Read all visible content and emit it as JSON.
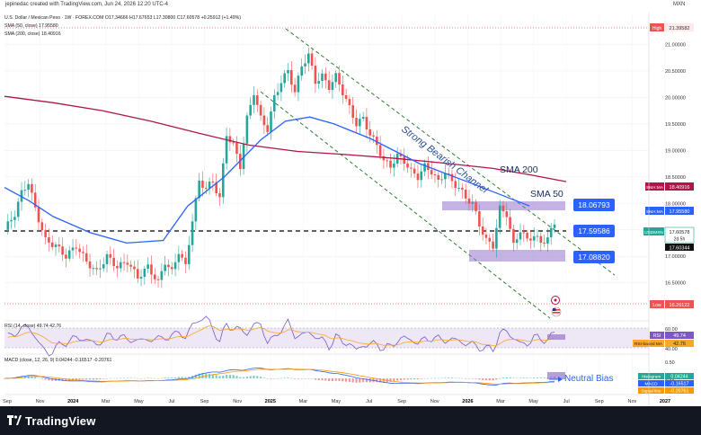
{
  "header": {
    "credit": "jepinedac created with TradingView.com, Jun 24, 2026 12:20 UTC-4",
    "currency": "MXN"
  },
  "legend": {
    "main": "U.S. Dollar / Mexican Peso · 1W · FOREX.COM O17.34666 H17.67653 L17.30800 C17.60578 +0.25912 (+1.49%)",
    "sma50": "SMA (50, close) 17.95580",
    "sma200": "SMA (200, close) 18.40916",
    "rsi": "RSI (14, close) 49.74 42.76",
    "macd": "MACD (close, 12, 26, 9) 0.04244 -0.16517 -0.20761"
  },
  "colors": {
    "bull": "#26a69a",
    "bear": "#ef5350",
    "sma50": "#2962ff",
    "sma200": "#b2134a",
    "box": "#9575cd",
    "label": "#2962ff",
    "rsi": "#7e57c2",
    "macd": "#2962ff",
    "signal": "#ff9800"
  },
  "annotations": {
    "channel": "Strong Bearish Channel",
    "sma200_label": "SMA 200",
    "sma50_label": "SMA 50",
    "neutral": "Neutral Bias",
    "level_top": "18.06793",
    "level_mid": "17.59586",
    "level_bot": "17.08820"
  },
  "price_tags": {
    "high_label": "High",
    "high": "21.39582",
    "sma200_tag": "SMA:MA",
    "sma200": "18.40916",
    "sma50_tag": "SMA:MA",
    "sma50": "17.95580",
    "cur_tag": "USDMXN",
    "cur": "17.60578",
    "countdown": "2d 5h",
    "prev": "17.60344",
    "low_label": "Low",
    "low": "16.26122"
  },
  "rsi_tags": {
    "rsi_label": "RSI",
    "rsi": "49.74",
    "ma_label": "RSI-based MA",
    "ma": "42.76"
  },
  "macd_tags": {
    "hist_label": "Histogram",
    "hist": "0.04244",
    "macd_label": "MACD",
    "macd": "-0.16517",
    "sig_label": "Signal line",
    "sig": "-0.20761"
  },
  "footer": {
    "brand": "TradingView"
  },
  "chart_data": {
    "type": "candlestick",
    "symbol": "USDMXN",
    "timeframe": "1W",
    "ylim": [
      15.9,
      21.5
    ],
    "y_ticks": [
      21.0,
      20.5,
      20.0,
      19.5,
      19.0,
      18.5,
      18.0,
      17.5,
      17.0,
      16.5
    ],
    "x_ticks": [
      "Sep",
      "Nov",
      "2024",
      "Mar",
      "May",
      "Jul",
      "Sep",
      "Nov",
      "2025",
      "Mar",
      "May",
      "Jul",
      "Sep",
      "Nov",
      "2026",
      "Mar",
      "May",
      "Jul",
      "Sep",
      "Nov",
      "2027"
    ],
    "rsi_ticks": [
      60.0,
      40.0
    ],
    "macd_ticks": [
      0.5,
      0.0
    ],
    "close_path": [
      [
        0,
        17.5
      ],
      [
        3,
        17.8
      ],
      [
        5,
        18.2
      ],
      [
        7,
        18.4
      ],
      [
        9,
        17.9
      ],
      [
        12,
        17.3
      ],
      [
        15,
        17.2
      ],
      [
        18,
        17.0
      ],
      [
        21,
        17.2
      ],
      [
        24,
        16.9
      ],
      [
        27,
        16.7
      ],
      [
        30,
        17.0
      ],
      [
        33,
        16.8
      ],
      [
        36,
        16.9
      ],
      [
        39,
        16.6
      ],
      [
        42,
        16.8
      ],
      [
        45,
        16.5
      ],
      [
        47,
        16.9
      ],
      [
        49,
        16.7
      ],
      [
        51,
        17.1
      ],
      [
        53,
        16.8
      ],
      [
        55,
        17.7
      ],
      [
        57,
        18.4
      ],
      [
        59,
        18.3
      ],
      [
        61,
        18.4
      ],
      [
        63,
        18.1
      ],
      [
        65,
        19.3
      ],
      [
        67,
        19.1
      ],
      [
        69,
        18.7
      ],
      [
        71,
        19.6
      ],
      [
        73,
        20.1
      ],
      [
        75,
        19.6
      ],
      [
        77,
        19.4
      ],
      [
        79,
        20.0
      ],
      [
        81,
        20.3
      ],
      [
        83,
        20.5
      ],
      [
        85,
        20.1
      ],
      [
        87,
        20.6
      ],
      [
        89,
        20.8
      ],
      [
        91,
        20.3
      ],
      [
        93,
        20.4
      ],
      [
        95,
        20.2
      ],
      [
        97,
        20.4
      ],
      [
        99,
        20.1
      ],
      [
        101,
        19.8
      ],
      [
        103,
        19.5
      ],
      [
        105,
        19.6
      ],
      [
        107,
        19.3
      ],
      [
        109,
        19.1
      ],
      [
        111,
        18.8
      ],
      [
        113,
        18.7
      ],
      [
        115,
        18.9
      ],
      [
        117,
        18.8
      ],
      [
        119,
        18.6
      ],
      [
        121,
        18.5
      ],
      [
        123,
        18.7
      ],
      [
        125,
        18.6
      ],
      [
        127,
        18.4
      ],
      [
        129,
        18.6
      ],
      [
        131,
        18.4
      ],
      [
        133,
        18.3
      ],
      [
        135,
        18.1
      ],
      [
        137,
        18.0
      ],
      [
        139,
        17.6
      ],
      [
        141,
        17.3
      ],
      [
        143,
        17.2
      ],
      [
        145,
        17.9
      ],
      [
        147,
        17.8
      ],
      [
        149,
        17.2
      ],
      [
        151,
        17.5
      ],
      [
        153,
        17.3
      ],
      [
        155,
        17.4
      ],
      [
        157,
        17.25
      ],
      [
        159,
        17.35
      ],
      [
        161,
        17.6
      ]
    ],
    "sma200": [
      [
        0,
        20.02
      ],
      [
        20,
        19.9
      ],
      [
        40,
        19.75
      ],
      [
        60,
        19.55
      ],
      [
        80,
        19.32
      ],
      [
        100,
        19.1
      ],
      [
        120,
        18.98
      ],
      [
        140,
        18.92
      ],
      [
        160,
        18.85
      ],
      [
        180,
        18.76
      ],
      [
        200,
        18.66
      ],
      [
        215,
        18.54
      ],
      [
        230,
        18.41
      ]
    ],
    "sma50": [
      [
        0,
        18.3
      ],
      [
        10,
        18.05
      ],
      [
        20,
        17.75
      ],
      [
        35,
        17.45
      ],
      [
        50,
        17.25
      ],
      [
        65,
        17.3
      ],
      [
        75,
        17.95
      ],
      [
        90,
        18.5
      ],
      [
        105,
        19.2
      ],
      [
        115,
        19.55
      ],
      [
        125,
        19.63
      ],
      [
        135,
        19.5
      ],
      [
        150,
        19.22
      ],
      [
        170,
        18.75
      ],
      [
        190,
        18.4
      ],
      [
        215,
        17.95
      ]
    ],
    "levels": [
      18.06793,
      17.59586,
      17.0882
    ],
    "range_high": 21.39582,
    "range_low": 16.26122,
    "current": 17.60578,
    "rsi": {
      "value": 49.74,
      "ma": 42.76
    },
    "macd": {
      "histogram": 0.04244,
      "macd": -0.16517,
      "signal": -0.20761
    }
  }
}
